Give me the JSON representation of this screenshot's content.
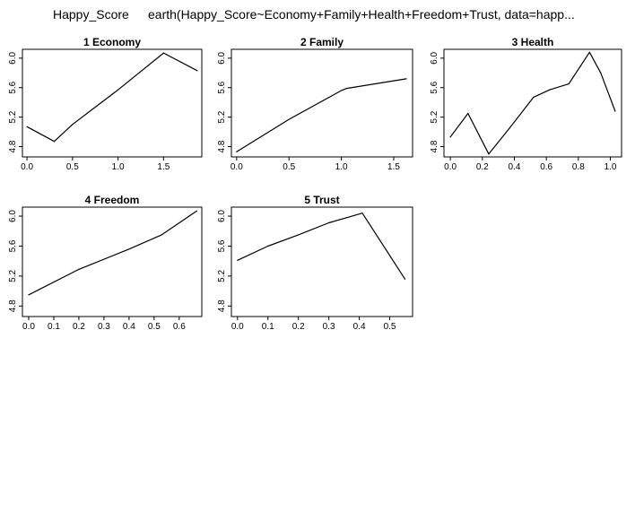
{
  "header": {
    "response": "Happy_Score",
    "call": "earth(Happy_Score~Economy+Family+Health+Freedom+Trust, data=happ..."
  },
  "chart_data": [
    {
      "type": "line",
      "title": "1  Economy",
      "xlabel": "",
      "ylabel": "",
      "xlim": [
        -0.05,
        1.92
      ],
      "ylim": [
        4.66,
        6.12
      ],
      "xticks": [
        "0.0",
        "0.5",
        "1.0",
        "1.5"
      ],
      "yticks": [
        "4.8",
        "5.2",
        "5.6",
        "6.0"
      ],
      "x": [
        0.0,
        0.3,
        0.5,
        1.0,
        1.5,
        1.87
      ],
      "y": [
        5.07,
        4.87,
        5.1,
        5.57,
        6.07,
        5.83
      ]
    },
    {
      "type": "line",
      "title": "2  Family",
      "xlabel": "",
      "ylabel": "",
      "xlim": [
        -0.05,
        1.68
      ],
      "ylim": [
        4.66,
        6.12
      ],
      "xticks": [
        "0.0",
        "0.5",
        "1.0",
        "1.5"
      ],
      "yticks": [
        "4.8",
        "5.2",
        "5.6",
        "6.0"
      ],
      "x": [
        0.0,
        0.5,
        1.0,
        1.05,
        1.62
      ],
      "y": [
        4.73,
        5.17,
        5.56,
        5.59,
        5.72
      ]
    },
    {
      "type": "line",
      "title": "3  Health",
      "xlabel": "",
      "ylabel": "",
      "xlim": [
        -0.04,
        1.07
      ],
      "ylim": [
        4.66,
        6.12
      ],
      "xticks": [
        "0.0",
        "0.2",
        "0.4",
        "0.6",
        "0.8",
        "1.0"
      ],
      "yticks": [
        "4.8",
        "5.2",
        "5.6",
        "6.0"
      ],
      "x": [
        0.0,
        0.11,
        0.24,
        0.37,
        0.52,
        0.62,
        0.74,
        0.87,
        0.94,
        1.03
      ],
      "y": [
        4.93,
        5.25,
        4.7,
        5.05,
        5.47,
        5.57,
        5.65,
        6.08,
        5.8,
        5.28
      ]
    },
    {
      "type": "line",
      "title": "4  Freedom",
      "xlabel": "",
      "ylabel": "",
      "xlim": [
        -0.025,
        0.69
      ],
      "ylim": [
        4.66,
        6.12
      ],
      "xticks": [
        "0.0",
        "0.1",
        "0.2",
        "0.3",
        "0.4",
        "0.5",
        "0.6"
      ],
      "yticks": [
        "4.8",
        "5.2",
        "5.6",
        "6.0"
      ],
      "x": [
        0.0,
        0.2,
        0.4,
        0.53,
        0.67
      ],
      "y": [
        4.95,
        5.29,
        5.56,
        5.75,
        6.07
      ]
    },
    {
      "type": "line",
      "title": "5  Trust",
      "xlabel": "",
      "ylabel": "",
      "xlim": [
        -0.02,
        0.575
      ],
      "ylim": [
        4.66,
        6.12
      ],
      "xticks": [
        "0.0",
        "0.1",
        "0.2",
        "0.3",
        "0.4",
        "0.5"
      ],
      "yticks": [
        "4.8",
        "5.2",
        "5.6",
        "6.0"
      ],
      "x": [
        0.0,
        0.1,
        0.2,
        0.3,
        0.41,
        0.55
      ],
      "y": [
        5.41,
        5.6,
        5.75,
        5.91,
        6.04,
        5.16
      ]
    }
  ]
}
